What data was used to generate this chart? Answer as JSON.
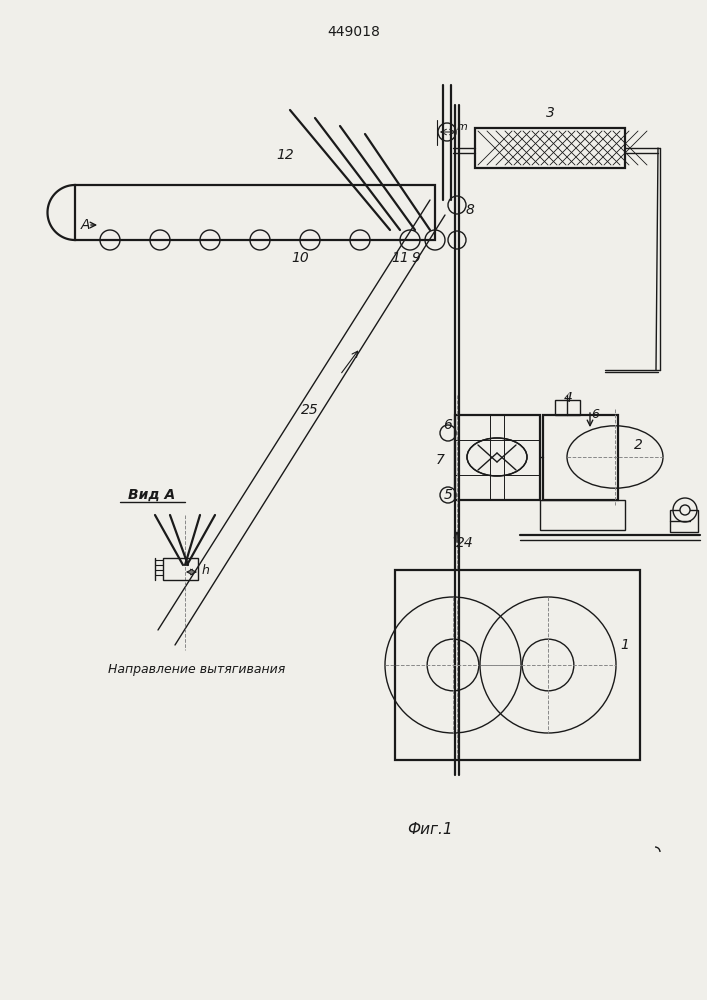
{
  "title": "449018",
  "fig_label": "Фиг.1",
  "view_label": "Вид А",
  "direction_label": "Направление вытягивания",
  "bg_color": "#f0efea",
  "line_color": "#1a1a1a",
  "paper_color": "#f0efea"
}
